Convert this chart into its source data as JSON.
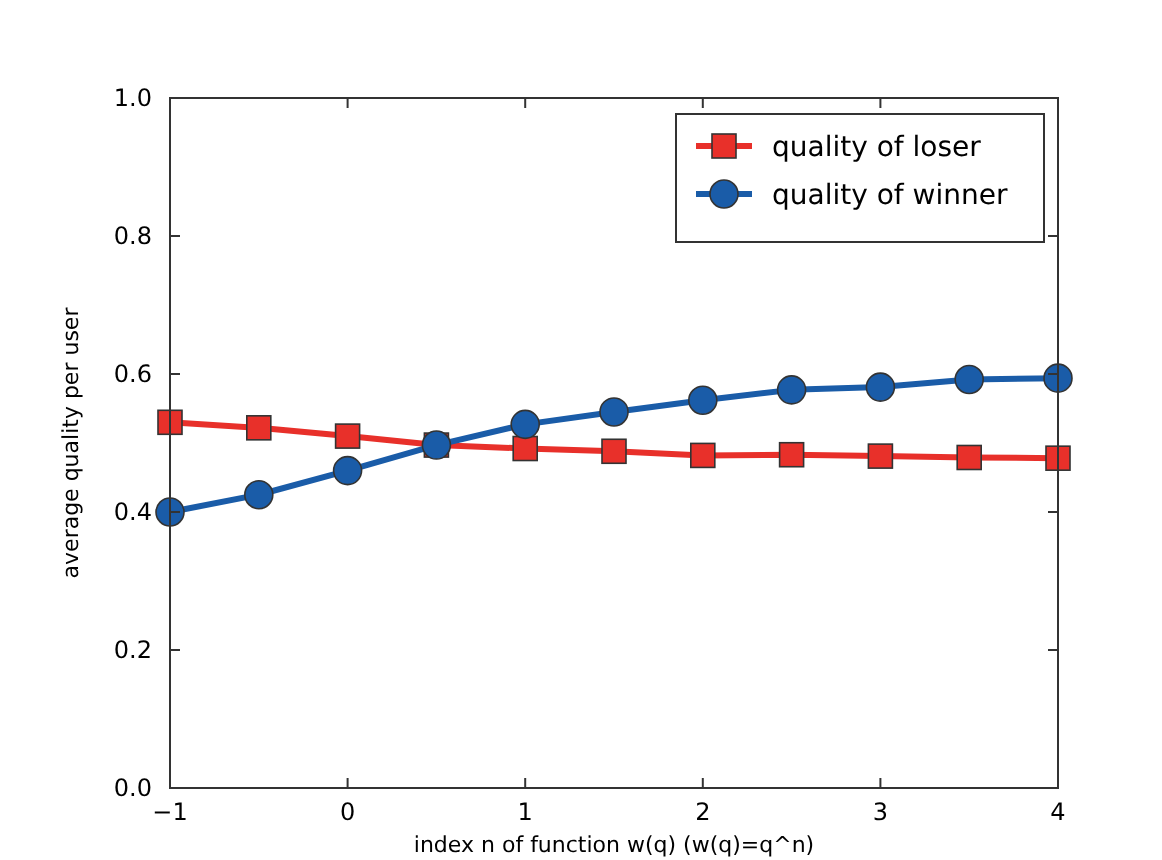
{
  "chart_data": {
    "type": "line",
    "xlabel": "index n of function w(q)  (w(q)=q^n)",
    "ylabel": "average quality per user",
    "x": [
      -1,
      -0.5,
      0,
      0.5,
      1,
      1.5,
      2,
      2.5,
      3,
      3.5,
      4
    ],
    "series": [
      {
        "name": "quality of loser",
        "color": "#e8302a",
        "marker": "square",
        "values": [
          0.53,
          0.522,
          0.51,
          0.497,
          0.492,
          0.488,
          0.482,
          0.483,
          0.481,
          0.479,
          0.478
        ]
      },
      {
        "name": "quality of winner",
        "color": "#1a5ca8",
        "marker": "circle",
        "values": [
          0.4,
          0.425,
          0.46,
          0.497,
          0.527,
          0.545,
          0.562,
          0.577,
          0.581,
          0.592,
          0.594
        ]
      }
    ],
    "xlim": [
      -1,
      4
    ],
    "xticks": [
      {
        "value": -1,
        "label": "−1"
      },
      0,
      1,
      2,
      3,
      4
    ],
    "ylim": [
      0,
      1
    ],
    "yticks": [
      {
        "value": 0,
        "label": "0.0"
      },
      {
        "value": 0.2,
        "label": "0.2"
      },
      {
        "value": 0.4,
        "label": "0.4"
      },
      {
        "value": 0.6,
        "label": "0.6"
      },
      {
        "value": 0.8,
        "label": "0.8"
      },
      {
        "value": 1,
        "label": "1.0"
      }
    ],
    "grid": false,
    "legend": "top right",
    "line_style": "solid"
  }
}
